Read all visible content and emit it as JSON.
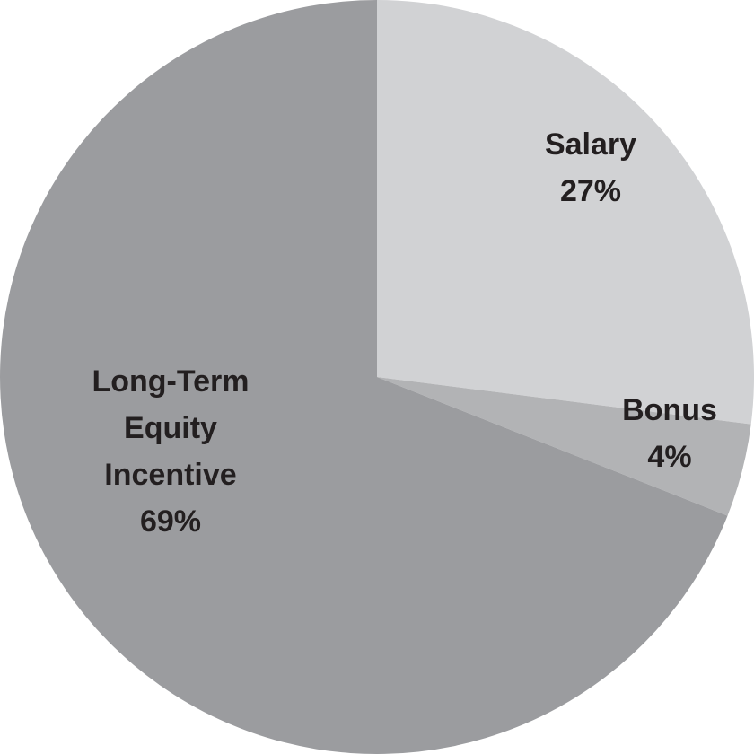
{
  "chart_data": {
    "type": "pie",
    "start_angle_deg": 0,
    "direction": "clockwise",
    "slices": [
      {
        "label": "Salary",
        "value": 27,
        "value_label": "27%",
        "color": "#d1d2d4",
        "label_lines": [
          "Salary",
          "27%"
        ]
      },
      {
        "label": "Bonus",
        "value": 4,
        "value_label": "4%",
        "color": "#b2b3b5",
        "label_lines": [
          "Bonus",
          "4%"
        ]
      },
      {
        "label": "Long-Term Equity Incentive",
        "value": 69,
        "value_label": "69%",
        "color": "#9b9c9f",
        "label_lines": [
          "Long-Term",
          "Equity",
          "Incentive",
          "69%"
        ]
      }
    ]
  }
}
